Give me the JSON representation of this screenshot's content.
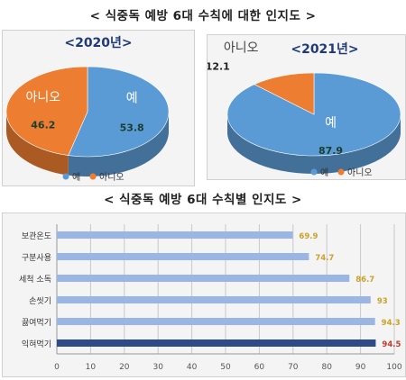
{
  "titles": {
    "top": "< 식중독 예방 6대 수칙에 대한 인지도 >",
    "bottom": "< 식중독 예방 6대 수칙별 인지도 >"
  },
  "colors": {
    "yes": "#5b9bd5",
    "no": "#ed7d31",
    "bar": "#9bb5e4",
    "bar_highlight": "#2e4a87",
    "value_label": "#c9a227",
    "value_label_highlight": "#c0392b"
  },
  "chart_data": [
    {
      "type": "pie",
      "title": "<2020년>",
      "slices": [
        {
          "label": "예",
          "value": 53.8
        },
        {
          "label": "아니오",
          "value": 46.2
        }
      ],
      "legend": [
        "예",
        "아니오"
      ],
      "legend_placement": "bottom"
    },
    {
      "type": "pie",
      "title": "<2021년>",
      "slices": [
        {
          "label": "예",
          "value": 87.9
        },
        {
          "label": "아니오",
          "value": 12.1
        }
      ],
      "legend": [
        "예",
        "아니오"
      ],
      "legend_placement": "bottom"
    },
    {
      "type": "bar",
      "orientation": "horizontal",
      "categories": [
        "보관온도",
        "구분사용",
        "세척 소독",
        "손씻기",
        "끓여먹기",
        "익혀먹기"
      ],
      "values": [
        69.9,
        74.7,
        86.7,
        93,
        94.3,
        94.5
      ],
      "xlim": [
        0,
        100
      ],
      "xticks": [
        0,
        10,
        20,
        30,
        40,
        50,
        60,
        70,
        80,
        90,
        100
      ],
      "grid": true
    }
  ]
}
